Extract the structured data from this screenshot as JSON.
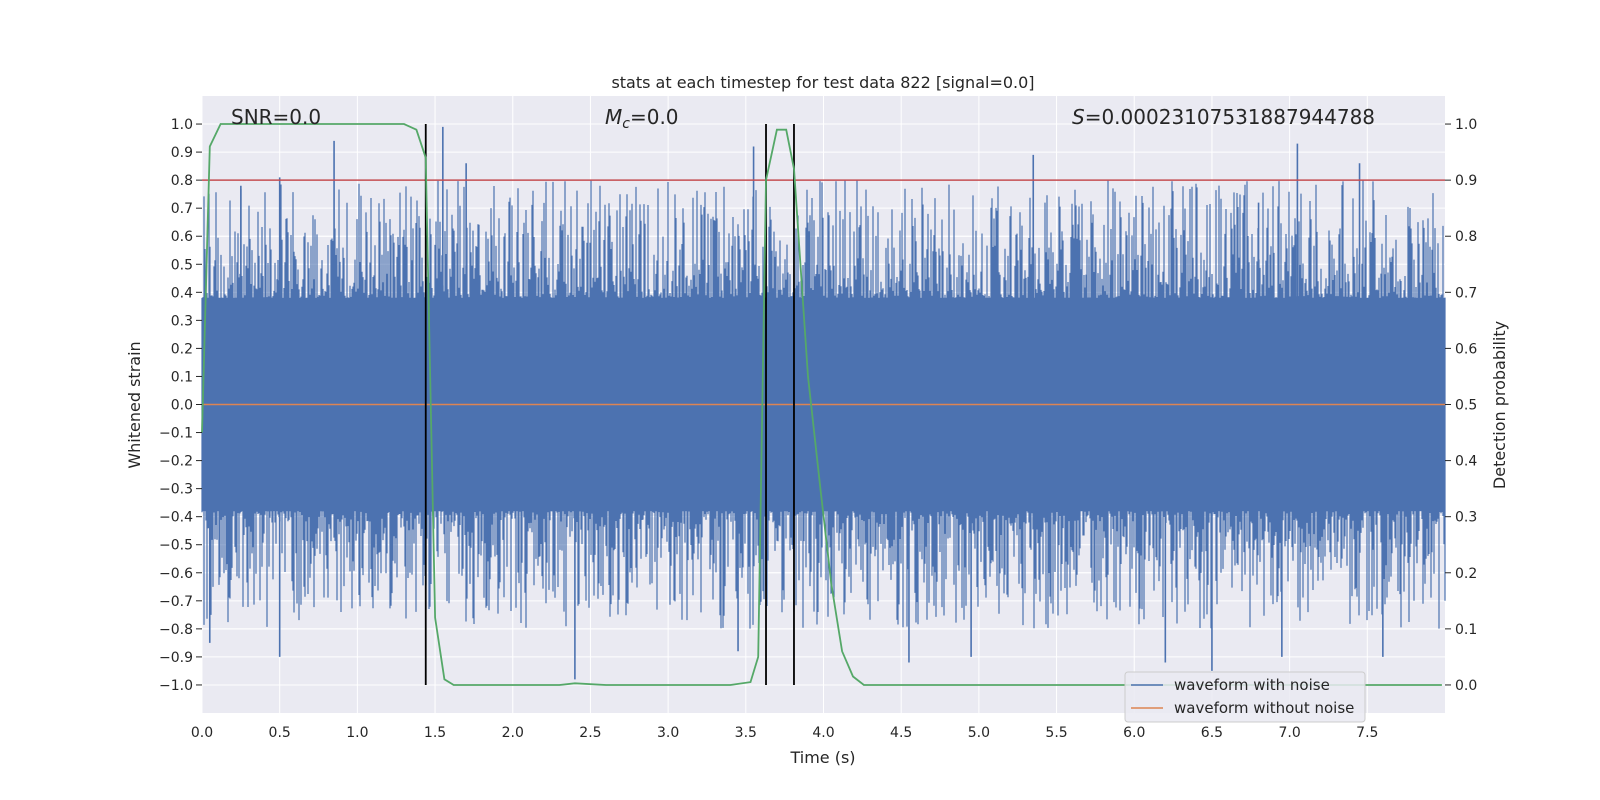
{
  "chart_data": {
    "type": "line",
    "title": "stats at each timestep for test data 822 [signal=0.0]",
    "xlabel": "Time (s)",
    "ylabel": "Whitened strain",
    "y2label": "Detection probability",
    "xlim": [
      0.0,
      8.0
    ],
    "ylim": [
      -1.1,
      1.1
    ],
    "y2lim": [
      -0.05,
      1.05
    ],
    "x_ticks": [
      0.0,
      0.5,
      1.0,
      1.5,
      2.0,
      2.5,
      3.0,
      3.5,
      4.0,
      4.5,
      5.0,
      5.5,
      6.0,
      6.5,
      7.0,
      7.5
    ],
    "x_tick_labels": [
      "0.0",
      "0.5",
      "1.0",
      "1.5",
      "2.0",
      "2.5",
      "3.0",
      "3.5",
      "4.0",
      "4.5",
      "5.0",
      "5.5",
      "6.0",
      "6.5",
      "7.0",
      "7.5"
    ],
    "y_ticks": [
      -1.0,
      -0.9,
      -0.8,
      -0.7,
      -0.6,
      -0.5,
      -0.4,
      -0.3,
      -0.2,
      -0.1,
      0.0,
      0.1,
      0.2,
      0.3,
      0.4,
      0.5,
      0.6,
      0.7,
      0.8,
      0.9,
      1.0
    ],
    "y_tick_labels": [
      "−1.0",
      "−0.9",
      "−0.8",
      "−0.7",
      "−0.6",
      "−0.5",
      "−0.4",
      "−0.3",
      "−0.2",
      "−0.1",
      "0.0",
      "0.1",
      "0.2",
      "0.3",
      "0.4",
      "0.5",
      "0.6",
      "0.7",
      "0.8",
      "0.9",
      "1.0"
    ],
    "y2_ticks": [
      0.0,
      0.1,
      0.2,
      0.3,
      0.4,
      0.5,
      0.6,
      0.7,
      0.8,
      0.9,
      1.0
    ],
    "y2_tick_labels": [
      "0.0",
      "0.1",
      "0.2",
      "0.3",
      "0.4",
      "0.5",
      "0.6",
      "0.7",
      "0.8",
      "0.9",
      "1.0"
    ],
    "annotations": {
      "snr": "SNR=0.0",
      "mc_symbol": "M",
      "mc_sub": "c",
      "mc_value": "=0.0",
      "s_symbol": "S",
      "s_value": "=0.00023107531887944788"
    },
    "threshold": {
      "value_y2": 0.9,
      "color": "#c44e52"
    },
    "vlines_x": [
      1.44,
      3.63,
      3.81
    ],
    "noise_envelope": {
      "core": 0.38,
      "spikes": [
        [
          0.05,
          -0.85
        ],
        [
          0.25,
          0.78
        ],
        [
          0.5,
          -0.9
        ],
        [
          0.5,
          0.81
        ],
        [
          0.85,
          0.94
        ],
        [
          1.55,
          0.99
        ],
        [
          1.7,
          0.86
        ],
        [
          2.4,
          -0.98
        ],
        [
          3.45,
          -0.88
        ],
        [
          3.55,
          0.92
        ],
        [
          4.55,
          -0.92
        ],
        [
          4.95,
          -0.9
        ],
        [
          5.35,
          0.89
        ],
        [
          6.2,
          -0.92
        ],
        [
          6.5,
          -0.95
        ],
        [
          6.8,
          0.72
        ],
        [
          6.95,
          -0.9
        ],
        [
          7.05,
          0.93
        ],
        [
          7.45,
          0.86
        ],
        [
          7.6,
          -0.9
        ]
      ]
    },
    "series": [
      {
        "name": "waveform with noise",
        "color": "#4c72b0",
        "axis": "left"
      },
      {
        "name": "waveform without noise",
        "color": "#dd8452",
        "axis": "left",
        "values_const": 0.0
      },
      {
        "name": "detection probability",
        "color": "#55a868",
        "axis": "right",
        "x": [
          0.0,
          0.05,
          0.12,
          0.3,
          0.6,
          1.0,
          1.3,
          1.38,
          1.44,
          1.5,
          1.56,
          1.62,
          2.0,
          2.3,
          2.4,
          2.6,
          3.0,
          3.4,
          3.53,
          3.58,
          3.63,
          3.7,
          3.76,
          3.81,
          3.9,
          3.98,
          4.05,
          4.12,
          4.19,
          4.26,
          5.0,
          7.98
        ],
        "values": [
          0.45,
          0.96,
          1.0,
          1.0,
          1.0,
          1.0,
          1.0,
          0.99,
          0.94,
          0.12,
          0.01,
          0.0,
          0.0,
          0.0,
          0.003,
          0.0,
          0.0,
          0.0,
          0.005,
          0.05,
          0.9,
          0.99,
          0.99,
          0.92,
          0.55,
          0.35,
          0.18,
          0.06,
          0.015,
          0.0,
          0.0,
          0.0
        ]
      }
    ],
    "legend": {
      "position": "lower-right",
      "entries": [
        "waveform with noise",
        "waveform without noise"
      ]
    }
  }
}
